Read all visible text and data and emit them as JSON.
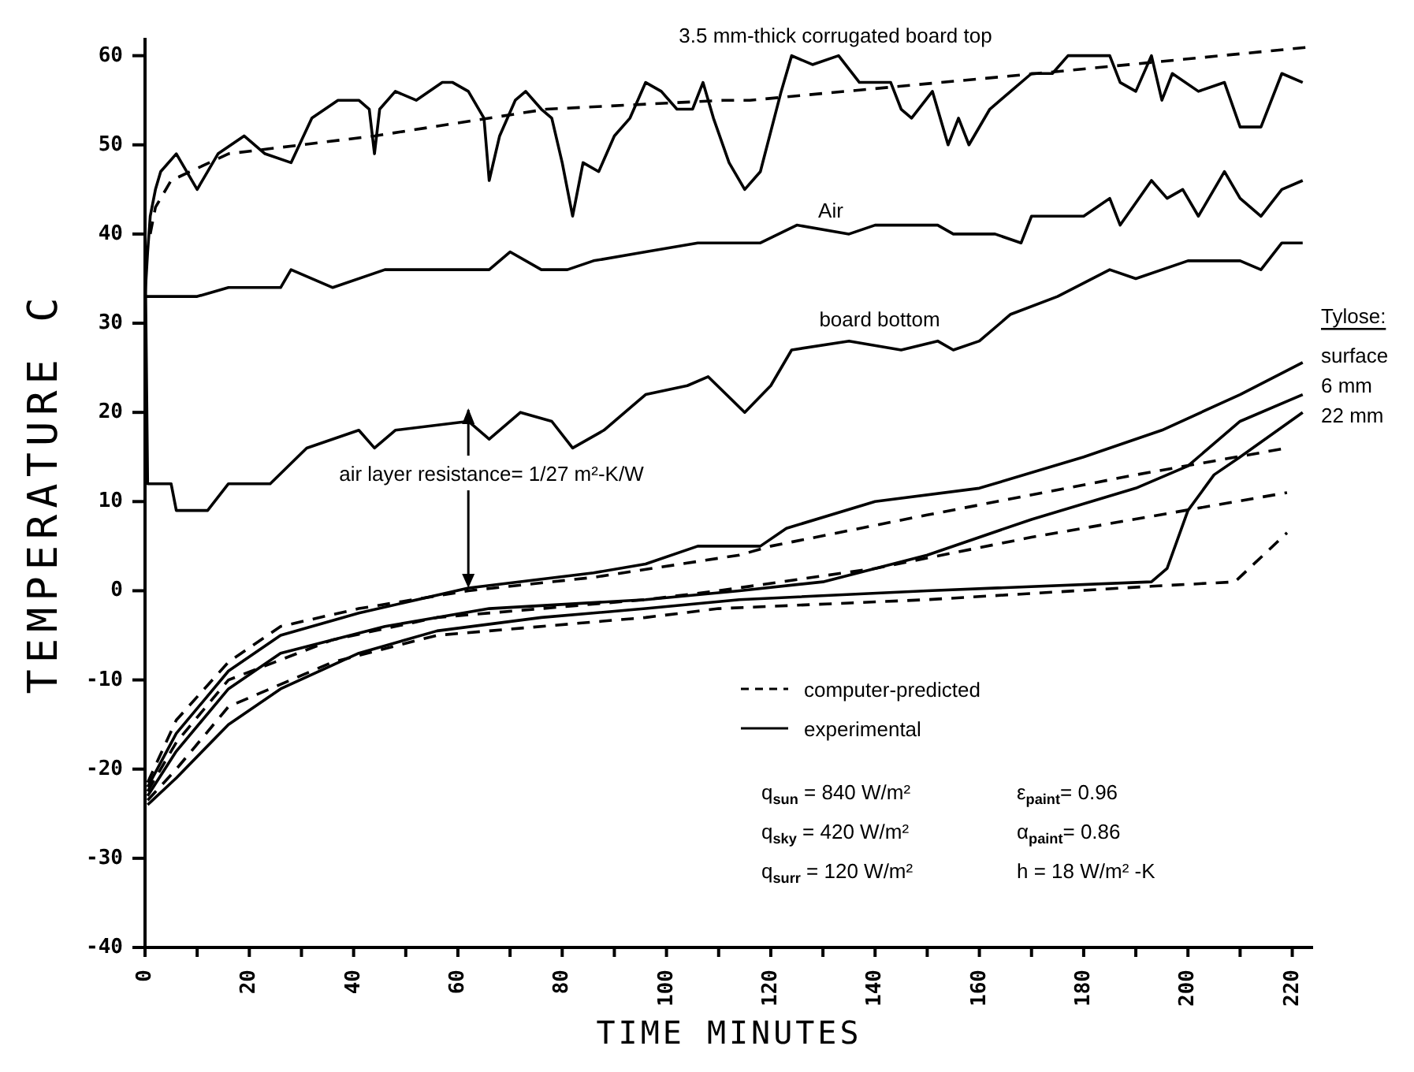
{
  "chart_data": {
    "type": "line",
    "xlabel": "TIME MINUTES",
    "ylabel": "TEMPERATURE C",
    "xlim": [
      0,
      224
    ],
    "ylim": [
      -40,
      62
    ],
    "xticks": [
      0,
      {
        "value": 10,
        "label": null
      },
      20,
      {
        "value": 30,
        "label": null
      },
      40,
      {
        "value": 50,
        "label": null
      },
      60,
      {
        "value": 70,
        "label": null
      },
      80,
      {
        "value": 90,
        "label": null
      },
      100,
      {
        "value": 110,
        "label": null
      },
      120,
      {
        "value": 130,
        "label": null
      },
      140,
      {
        "value": 150,
        "label": null
      },
      160,
      {
        "value": 170,
        "label": null
      },
      180,
      {
        "value": 190,
        "label": null
      },
      200,
      {
        "value": 210,
        "label": null
      },
      220
    ],
    "yticks": [
      -40,
      -30,
      -20,
      -10,
      0,
      10,
      20,
      30,
      40,
      50,
      60
    ],
    "grid": false,
    "series": [
      {
        "color": "#000000",
        "line_style": "dashed",
        "x": [
          1,
          2,
          5,
          16,
          44,
          77,
          111,
          116,
          171,
          224
        ],
        "values": [
          40,
          43,
          46,
          49,
          51,
          54,
          55,
          55,
          58,
          61
        ]
      },
      {
        "color": "#000000",
        "line_style": "dashed",
        "x": [
          0.5,
          6,
          16,
          26,
          41,
          62,
          86,
          114,
          120,
          150,
          190,
          219
        ],
        "values": [
          -21.5,
          -14.5,
          -8,
          -4,
          -2,
          0,
          1.5,
          4,
          5,
          8.5,
          13,
          16
        ]
      },
      {
        "color": "#000000",
        "line_style": "dashed",
        "x": [
          0.5,
          6,
          16,
          36,
          56,
          96,
          110,
          140,
          170,
          219
        ],
        "values": [
          -22.5,
          -17,
          -10,
          -5.5,
          -3,
          -1,
          0,
          2.5,
          6,
          11
        ]
      },
      {
        "color": "#000000",
        "line_style": "dashed",
        "x": [
          0.5,
          6,
          16,
          36,
          56,
          96,
          110,
          150,
          193,
          209,
          219
        ],
        "values": [
          -23.5,
          -20,
          -13,
          -8,
          -5,
          -3,
          -2,
          -1,
          0.5,
          1,
          6.5
        ]
      },
      {
        "name": "3.5 mm-thick corrugated board top",
        "color": "#000000",
        "line_style": "solid",
        "x": [
          0,
          0.5,
          1,
          2,
          3,
          6,
          10,
          14,
          19,
          23,
          28,
          32,
          37,
          41,
          43,
          44,
          45,
          48,
          52,
          57,
          59,
          62,
          65,
          66,
          68,
          71,
          73,
          76,
          78,
          80,
          82,
          84,
          87,
          90,
          93,
          96,
          99,
          102,
          105,
          107,
          109,
          112,
          115,
          118,
          122,
          124,
          128,
          133,
          137,
          143,
          145,
          147,
          151,
          154,
          156,
          158,
          162,
          166,
          170,
          174,
          177,
          180,
          185,
          187,
          190,
          193,
          195,
          197,
          202,
          207,
          210,
          214,
          218,
          222
        ],
        "values": [
          33,
          38,
          42,
          45,
          47,
          49,
          45,
          49,
          51,
          49,
          48,
          53,
          55,
          55,
          54,
          49,
          54,
          56,
          55,
          57,
          57,
          56,
          53,
          46,
          51,
          55,
          56,
          54,
          53,
          48,
          42,
          48,
          47,
          51,
          53,
          57,
          56,
          54,
          54,
          57,
          53,
          48,
          45,
          47,
          56,
          60,
          59,
          60,
          57,
          57,
          54,
          53,
          56,
          50,
          53,
          50,
          54,
          56,
          58,
          58,
          60,
          60,
          60,
          57,
          56,
          60,
          55,
          58,
          56,
          57,
          52,
          52,
          58,
          57
        ]
      },
      {
        "name": "Air",
        "color": "#000000",
        "line_style": "solid",
        "x": [
          0,
          6,
          10,
          16,
          26,
          28,
          36,
          46,
          56,
          66,
          70,
          76,
          81,
          86,
          96,
          106,
          110,
          118,
          125,
          135,
          140,
          152,
          155,
          163,
          168,
          170,
          180,
          185,
          187,
          193,
          196,
          199,
          202,
          207,
          210,
          214,
          218,
          222
        ],
        "values": [
          33,
          33,
          33,
          34,
          34,
          36,
          34,
          36,
          36,
          36,
          38,
          36,
          36,
          37,
          38,
          39,
          39,
          39,
          41,
          40,
          41,
          41,
          40,
          40,
          39,
          42,
          42,
          44,
          41,
          46,
          44,
          45,
          42,
          47,
          44,
          42,
          45,
          46
        ]
      },
      {
        "name": "board bottom",
        "color": "#000000",
        "line_style": "solid",
        "x": [
          0,
          0.5,
          5,
          6,
          12,
          16,
          24,
          31,
          41,
          44,
          48,
          62,
          66,
          72,
          78,
          82,
          88,
          96,
          104,
          108,
          115,
          120,
          124,
          135,
          145,
          152,
          155,
          160,
          166,
          175,
          185,
          190,
          200,
          210,
          214,
          218,
          222
        ],
        "values": [
          40,
          12,
          12,
          9,
          9,
          12,
          12,
          16,
          18,
          16,
          18,
          19,
          17,
          20,
          19,
          16,
          18,
          22,
          23,
          24,
          20,
          23,
          27,
          28,
          27,
          28,
          27,
          28,
          31,
          33,
          36,
          35,
          37,
          37,
          36,
          39,
          39
        ]
      },
      {
        "name": "surface",
        "color": "#000000",
        "line_style": "solid",
        "x": [
          0.5,
          6,
          16,
          26,
          41,
          62,
          86,
          96,
          106,
          118,
          123,
          140,
          160,
          180,
          195,
          210,
          222
        ],
        "values": [
          -22,
          -16,
          -9,
          -5,
          -2.5,
          0.3,
          2,
          3,
          5,
          5,
          7,
          10,
          11.5,
          15,
          18,
          22,
          25.6
        ]
      },
      {
        "name": "6 mm",
        "color": "#000000",
        "line_style": "solid",
        "x": [
          0.5,
          6,
          16,
          26,
          46,
          66,
          96,
          114,
          130,
          150,
          170,
          190,
          200,
          210,
          222
        ],
        "values": [
          -23,
          -18,
          -11,
          -7,
          -4,
          -2,
          -1,
          0,
          1,
          4,
          8,
          11.5,
          14,
          19,
          22
        ]
      },
      {
        "name": "22 mm",
        "color": "#000000",
        "line_style": "solid",
        "x": [
          0.5,
          6,
          16,
          26,
          41,
          56,
          76,
          96,
          114,
          150,
          193,
          196,
          200,
          205,
          210,
          222
        ],
        "values": [
          -24,
          -21,
          -15,
          -11,
          -7,
          -4.5,
          -3,
          -2,
          -1,
          0,
          1,
          2.5,
          9,
          13,
          15,
          20
        ]
      }
    ],
    "annotations": [
      {
        "text": "air layer resistance= 1/27 m²-K/W",
        "x": 62,
        "y": 0.3
      },
      "computer-predicted",
      "experimental",
      "q$_{sun}$ = 840 W/m²",
      "q$_{sky}$ = 420 W/m²",
      "q$_{surr}$ = 120 W/m²",
      "ε$_{paint}$= 0.96",
      "α$_{paint}$= 0.86",
      "h = 18 W/m² -K",
      "Tylose:"
    ]
  }
}
